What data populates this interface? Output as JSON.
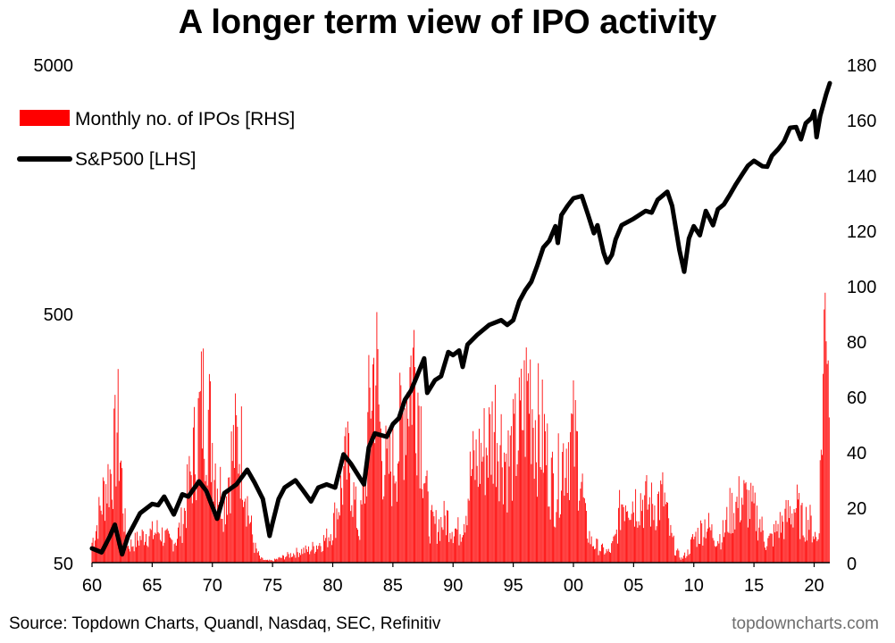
{
  "title": "A longer term view of IPO activity",
  "source": "Source: Topdown Charts, Quandl, Nasdaq, SEC, Refinitiv",
  "site": "topdowncharts.com",
  "colors": {
    "ipo_bar": "#ff0000",
    "sp500_line": "#000000"
  },
  "chart_data": {
    "type": "bar+line",
    "legend_position": "top-left",
    "grid": false,
    "x_axis": {
      "ticks": [
        "60",
        "65",
        "70",
        "75",
        "80",
        "85",
        "90",
        "95",
        "00",
        "05",
        "10",
        "15",
        "20"
      ],
      "range": [
        1960,
        2021.3
      ]
    },
    "y_left": {
      "scale": "log",
      "range": [
        50,
        5000
      ],
      "ticks": [
        "50",
        "500",
        "5000"
      ]
    },
    "y_right": {
      "scale": "linear",
      "range": [
        0,
        180
      ],
      "ticks": [
        "0",
        "20",
        "40",
        "60",
        "80",
        "100",
        "120",
        "140",
        "160",
        "180"
      ]
    },
    "series": [
      {
        "name": "Monthly no. of IPOs [RHS]",
        "kind": "bar",
        "axis": "right",
        "points": [
          [
            1960.0,
            10
          ],
          [
            1960.4,
            18
          ],
          [
            1960.8,
            30
          ],
          [
            1961.2,
            40
          ],
          [
            1961.6,
            45
          ],
          [
            1961.9,
            55
          ],
          [
            1962.1,
            70
          ],
          [
            1962.4,
            50
          ],
          [
            1962.7,
            20
          ],
          [
            1963.0,
            8
          ],
          [
            1963.5,
            10
          ],
          [
            1964.0,
            12
          ],
          [
            1964.5,
            15
          ],
          [
            1965.0,
            14
          ],
          [
            1965.5,
            16
          ],
          [
            1966.0,
            13
          ],
          [
            1966.5,
            10
          ],
          [
            1967.0,
            12
          ],
          [
            1967.5,
            20
          ],
          [
            1968.0,
            35
          ],
          [
            1968.5,
            55
          ],
          [
            1968.9,
            70
          ],
          [
            1969.2,
            80
          ],
          [
            1969.6,
            76
          ],
          [
            1970.0,
            60
          ],
          [
            1970.5,
            40
          ],
          [
            1971.0,
            30
          ],
          [
            1971.5,
            50
          ],
          [
            1972.0,
            60
          ],
          [
            1972.5,
            55
          ],
          [
            1973.0,
            25
          ],
          [
            1973.5,
            8
          ],
          [
            1974.0,
            2
          ],
          [
            1974.5,
            1
          ],
          [
            1975.0,
            1
          ],
          [
            1975.5,
            2
          ],
          [
            1976.0,
            3
          ],
          [
            1976.5,
            4
          ],
          [
            1977.0,
            5
          ],
          [
            1977.5,
            6
          ],
          [
            1978.0,
            6
          ],
          [
            1978.5,
            8
          ],
          [
            1979.0,
            10
          ],
          [
            1979.5,
            12
          ],
          [
            1980.0,
            18
          ],
          [
            1980.5,
            30
          ],
          [
            1981.0,
            45
          ],
          [
            1981.4,
            50
          ],
          [
            1981.8,
            30
          ],
          [
            1982.2,
            15
          ],
          [
            1982.7,
            40
          ],
          [
            1983.2,
            90
          ],
          [
            1983.6,
            100
          ],
          [
            1984.0,
            60
          ],
          [
            1984.5,
            45
          ],
          [
            1985.0,
            50
          ],
          [
            1985.5,
            60
          ],
          [
            1986.0,
            80
          ],
          [
            1986.4,
            95
          ],
          [
            1986.8,
            100
          ],
          [
            1987.2,
            80
          ],
          [
            1987.7,
            40
          ],
          [
            1988.0,
            20
          ],
          [
            1988.5,
            18
          ],
          [
            1989.0,
            20
          ],
          [
            1989.5,
            22
          ],
          [
            1990.0,
            18
          ],
          [
            1990.5,
            15
          ],
          [
            1991.0,
            25
          ],
          [
            1991.5,
            45
          ],
          [
            1992.0,
            50
          ],
          [
            1992.5,
            55
          ],
          [
            1993.0,
            60
          ],
          [
            1993.5,
            70
          ],
          [
            1994.0,
            60
          ],
          [
            1994.5,
            50
          ],
          [
            1995.0,
            55
          ],
          [
            1995.5,
            65
          ],
          [
            1996.0,
            80
          ],
          [
            1996.4,
            90
          ],
          [
            1996.8,
            70
          ],
          [
            1997.2,
            65
          ],
          [
            1997.6,
            60
          ],
          [
            1998.0,
            45
          ],
          [
            1998.5,
            35
          ],
          [
            1999.0,
            50
          ],
          [
            1999.5,
            60
          ],
          [
            2000.0,
            62
          ],
          [
            2000.5,
            50
          ],
          [
            2001.0,
            20
          ],
          [
            2001.5,
            10
          ],
          [
            2002.0,
            8
          ],
          [
            2002.5,
            6
          ],
          [
            2003.0,
            5
          ],
          [
            2003.5,
            12
          ],
          [
            2004.0,
            30
          ],
          [
            2004.5,
            35
          ],
          [
            2005.0,
            30
          ],
          [
            2005.5,
            32
          ],
          [
            2006.0,
            30
          ],
          [
            2006.5,
            28
          ],
          [
            2007.0,
            30
          ],
          [
            2007.5,
            33
          ],
          [
            2008.0,
            15
          ],
          [
            2008.5,
            6
          ],
          [
            2009.0,
            2
          ],
          [
            2009.5,
            5
          ],
          [
            2010.0,
            12
          ],
          [
            2010.5,
            15
          ],
          [
            2011.0,
            20
          ],
          [
            2011.5,
            15
          ],
          [
            2012.0,
            12
          ],
          [
            2012.5,
            15
          ],
          [
            2013.0,
            25
          ],
          [
            2013.5,
            28
          ],
          [
            2014.0,
            32
          ],
          [
            2014.5,
            30
          ],
          [
            2015.0,
            25
          ],
          [
            2015.5,
            20
          ],
          [
            2016.0,
            10
          ],
          [
            2016.5,
            12
          ],
          [
            2017.0,
            18
          ],
          [
            2017.5,
            20
          ],
          [
            2018.0,
            25
          ],
          [
            2018.5,
            28
          ],
          [
            2019.0,
            20
          ],
          [
            2019.5,
            22
          ],
          [
            2020.0,
            15
          ],
          [
            2020.3,
            10
          ],
          [
            2020.5,
            40
          ],
          [
            2020.7,
            80
          ],
          [
            2020.85,
            110
          ],
          [
            2021.0,
            152
          ],
          [
            2021.15,
            120
          ],
          [
            2021.3,
            85
          ]
        ]
      },
      {
        "name": "S&P500 [LHS]",
        "kind": "line",
        "axis": "left",
        "points": [
          [
            1960.0,
            57
          ],
          [
            1960.8,
            55
          ],
          [
            1961.5,
            64
          ],
          [
            1961.9,
            71
          ],
          [
            1962.5,
            54
          ],
          [
            1963.0,
            64
          ],
          [
            1964.0,
            79
          ],
          [
            1965.0,
            86
          ],
          [
            1965.5,
            85
          ],
          [
            1966.0,
            92
          ],
          [
            1966.8,
            78
          ],
          [
            1967.5,
            94
          ],
          [
            1968.0,
            92
          ],
          [
            1968.9,
            106
          ],
          [
            1969.5,
            97
          ],
          [
            1970.4,
            75
          ],
          [
            1971.0,
            95
          ],
          [
            1972.0,
            103
          ],
          [
            1972.9,
            118
          ],
          [
            1973.5,
            105
          ],
          [
            1974.2,
            90
          ],
          [
            1974.75,
            64
          ],
          [
            1975.0,
            72
          ],
          [
            1975.5,
            90
          ],
          [
            1976.0,
            100
          ],
          [
            1976.9,
            107
          ],
          [
            1977.5,
            98
          ],
          [
            1978.2,
            88
          ],
          [
            1978.8,
            100
          ],
          [
            1979.5,
            103
          ],
          [
            1980.2,
            100
          ],
          [
            1980.9,
            136
          ],
          [
            1981.5,
            125
          ],
          [
            1982.6,
            103
          ],
          [
            1983.0,
            145
          ],
          [
            1983.5,
            165
          ],
          [
            1984.5,
            160
          ],
          [
            1985.0,
            180
          ],
          [
            1985.5,
            190
          ],
          [
            1986.0,
            225
          ],
          [
            1986.5,
            245
          ],
          [
            1987.0,
            280
          ],
          [
            1987.6,
            330
          ],
          [
            1987.85,
            240
          ],
          [
            1988.5,
            270
          ],
          [
            1989.0,
            280
          ],
          [
            1989.6,
            350
          ],
          [
            1990.0,
            340
          ],
          [
            1990.5,
            355
          ],
          [
            1990.8,
            305
          ],
          [
            1991.2,
            375
          ],
          [
            1992.0,
            410
          ],
          [
            1993.0,
            450
          ],
          [
            1994.0,
            470
          ],
          [
            1994.5,
            450
          ],
          [
            1995.0,
            470
          ],
          [
            1995.5,
            560
          ],
          [
            1996.0,
            620
          ],
          [
            1996.5,
            670
          ],
          [
            1997.0,
            780
          ],
          [
            1997.5,
            920
          ],
          [
            1998.0,
            980
          ],
          [
            1998.5,
            1120
          ],
          [
            1998.7,
            960
          ],
          [
            1999.0,
            1240
          ],
          [
            1999.5,
            1350
          ],
          [
            2000.0,
            1450
          ],
          [
            2000.7,
            1480
          ],
          [
            2001.2,
            1250
          ],
          [
            2001.7,
            1050
          ],
          [
            2002.0,
            1130
          ],
          [
            2002.5,
            880
          ],
          [
            2002.8,
            800
          ],
          [
            2003.2,
            860
          ],
          [
            2003.5,
            990
          ],
          [
            2004.0,
            1130
          ],
          [
            2005.0,
            1200
          ],
          [
            2006.0,
            1290
          ],
          [
            2006.5,
            1270
          ],
          [
            2007.0,
            1430
          ],
          [
            2007.8,
            1540
          ],
          [
            2008.2,
            1350
          ],
          [
            2008.8,
            900
          ],
          [
            2009.2,
            735
          ],
          [
            2009.6,
            1000
          ],
          [
            2010.0,
            1120
          ],
          [
            2010.5,
            1030
          ],
          [
            2011.0,
            1290
          ],
          [
            2011.6,
            1130
          ],
          [
            2012.0,
            1310
          ],
          [
            2012.5,
            1370
          ],
          [
            2013.0,
            1500
          ],
          [
            2013.5,
            1650
          ],
          [
            2014.0,
            1800
          ],
          [
            2014.5,
            1960
          ],
          [
            2015.0,
            2050
          ],
          [
            2015.7,
            1950
          ],
          [
            2016.1,
            1940
          ],
          [
            2016.5,
            2150
          ],
          [
            2017.0,
            2280
          ],
          [
            2017.5,
            2450
          ],
          [
            2018.0,
            2780
          ],
          [
            2018.5,
            2800
          ],
          [
            2018.9,
            2500
          ],
          [
            2019.3,
            2900
          ],
          [
            2019.8,
            3050
          ],
          [
            2020.0,
            3250
          ],
          [
            2020.2,
            2550
          ],
          [
            2020.5,
            3100
          ],
          [
            2021.0,
            3800
          ],
          [
            2021.3,
            4200
          ]
        ]
      }
    ]
  }
}
